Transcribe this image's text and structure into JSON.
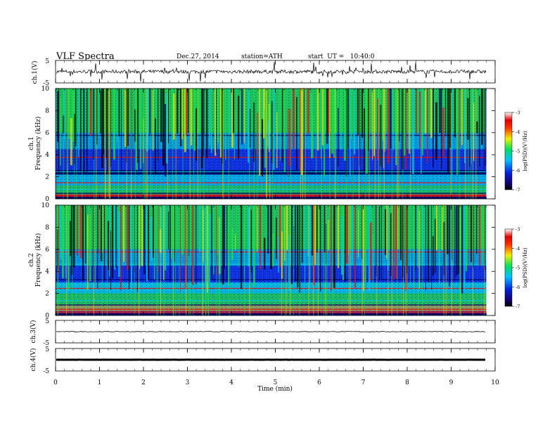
{
  "header": {
    "title": "VLF Spectra",
    "date": "Dec.27, 2014",
    "station": "station=ATH",
    "start": "start  UT =   10:40:0"
  },
  "time_axis": {
    "label": "Time  (min)",
    "range": [
      0,
      10
    ],
    "ticks": [
      "0",
      "1",
      "2",
      "3",
      "4",
      "5",
      "6",
      "7",
      "8",
      "9",
      "10"
    ]
  },
  "colorbar": {
    "label": "log(PSD)(V²/Hz)",
    "range": [
      -7,
      -3
    ],
    "ticks": [
      "-3",
      "-4",
      "-5",
      "-6",
      "-7"
    ]
  },
  "colors": {
    "deep": "#000060",
    "blue": "#1030e0",
    "cyan": "#00c8e0",
    "green": "#20e040",
    "yellow": "#e8e000",
    "red": "#e01010"
  },
  "chart_data": [
    {
      "type": "line",
      "panel": "ch1",
      "ylabel": "ch.1(V)",
      "ylim": [
        -5,
        5
      ],
      "ticks": [
        "5",
        "-5"
      ],
      "x": [
        0,
        9.8
      ],
      "description_values": "noisy waveform centered near 0 V, amplitude about ±1 V with sferic spikes up to ±5 V"
    },
    {
      "type": "heatmap",
      "panel": "ch1-spectrogram",
      "ylabel": "ch.1",
      "ylabel2": "Frequency  (kHz)",
      "ylim": [
        0,
        10
      ],
      "ticks": [
        "0",
        "2",
        "4",
        "6",
        "8",
        "10"
      ],
      "xlim": [
        0,
        10
      ],
      "zlim": [
        -7,
        -3
      ]
    },
    {
      "type": "heatmap",
      "panel": "ch2-spectrogram",
      "ylabel": "ch.2",
      "ylabel2": "Frequency  (kHz)",
      "ylim": [
        0,
        10
      ],
      "ticks": [
        "0",
        "2",
        "4",
        "6",
        "8",
        "10"
      ],
      "xlim": [
        0,
        10
      ],
      "zlim": [
        -7,
        -3
      ]
    },
    {
      "type": "line",
      "panel": "ch3",
      "ylabel": "ch.3(V)",
      "ylim": [
        -5,
        5
      ],
      "ticks": [
        "5",
        "-5"
      ],
      "x": [
        0,
        9.8
      ],
      "y_level": 0
    },
    {
      "type": "line",
      "panel": "ch4",
      "ylabel": "ch.4(V)",
      "ylim": [
        -5,
        5
      ],
      "ticks": [
        "5",
        "-5"
      ],
      "x": [
        0,
        9.8
      ],
      "y_level": 0
    }
  ]
}
